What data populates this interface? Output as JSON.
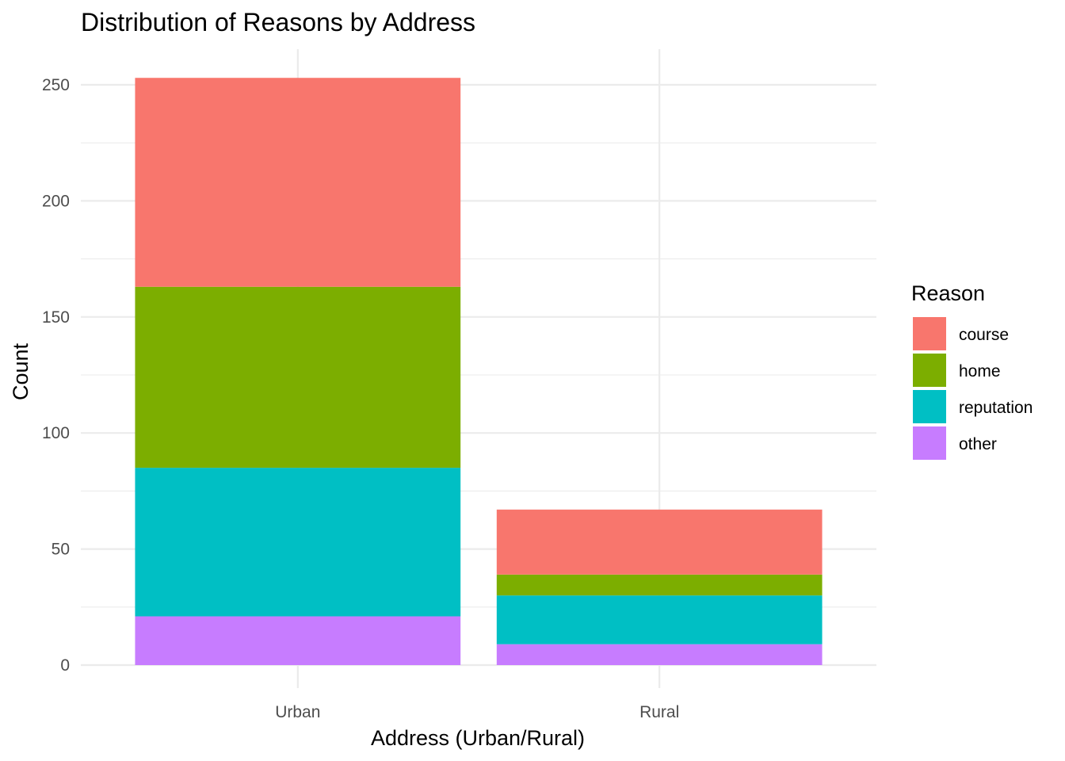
{
  "chart_data": {
    "type": "bar",
    "stacked": true,
    "title": "Distribution of Reasons by Address",
    "xlabel": "Address (Urban/Rural)",
    "ylabel": "Count",
    "categories": [
      "Urban",
      "Rural"
    ],
    "ylim": [
      0,
      260
    ],
    "yticks": [
      0,
      50,
      100,
      150,
      200,
      250
    ],
    "grid": true,
    "legend": {
      "title": "Reason",
      "placement": "right"
    },
    "series": [
      {
        "name": "course",
        "color": "#F8766D",
        "values": [
          90,
          28
        ]
      },
      {
        "name": "home",
        "color": "#7CAE00",
        "values": [
          78,
          9
        ]
      },
      {
        "name": "reputation",
        "color": "#00BFC4",
        "values": [
          64,
          21
        ]
      },
      {
        "name": "other",
        "color": "#C77CFF",
        "values": [
          21,
          9
        ]
      }
    ]
  }
}
